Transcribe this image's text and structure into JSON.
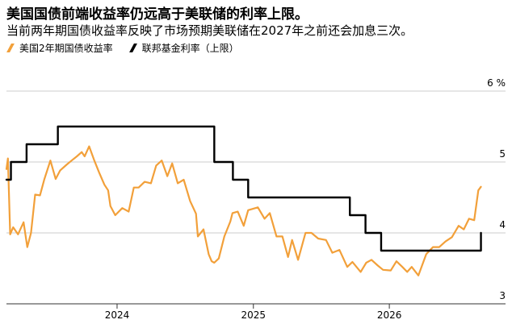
{
  "header": {
    "title": "美国国债前端收益率仍远高于美联储的利率上限。",
    "subtitle": "当前两年期国债收益率反映了市场预期美联储在2027年之前还会加息三次。"
  },
  "colors": {
    "yield": "#F2A03A",
    "fed": "#000000",
    "grid": "#cccccc",
    "axis": "#333333"
  },
  "chart_data": {
    "type": "line",
    "title": "美国国债前端收益率仍远高于美联储的利率上限。",
    "subtitle": "当前两年期国债收益率反映了市场预期美联储在2027年之前还会加息三次。",
    "xlabel": "",
    "ylabel": "",
    "ylim": [
      3,
      6.25
    ],
    "xlim": [
      "2023-03-10",
      "2026-10-01"
    ],
    "yticks": [
      {
        "value": 3,
        "label": "3"
      },
      {
        "value": 4,
        "label": "4"
      },
      {
        "value": 5,
        "label": "5"
      },
      {
        "value": 6,
        "label": "6 %"
      }
    ],
    "xticks": [
      {
        "value": "2024-01-01",
        "label": "2024"
      },
      {
        "value": "2025-01-01",
        "label": "2025"
      },
      {
        "value": "2026-01-01",
        "label": "2026"
      }
    ],
    "grid": true,
    "legend_position": "top-left",
    "series": [
      {
        "name": "美国2年期国债收益率",
        "style": "line",
        "color": "#F2A03A",
        "x": [
          "2023-03-10",
          "2023-03-14",
          "2023-03-20",
          "2023-03-28",
          "2023-04-10",
          "2023-04-25",
          "2023-05-05",
          "2023-05-15",
          "2023-05-26",
          "2023-06-08",
          "2023-06-20",
          "2023-07-06",
          "2023-07-20",
          "2023-08-01",
          "2023-08-18",
          "2023-09-01",
          "2023-09-15",
          "2023-09-28",
          "2023-10-06",
          "2023-10-18",
          "2023-11-01",
          "2023-11-14",
          "2023-11-28",
          "2023-12-08",
          "2023-12-14",
          "2023-12-27",
          "2024-01-15",
          "2024-02-01",
          "2024-02-15",
          "2024-02-28",
          "2024-03-15",
          "2024-04-01",
          "2024-04-15",
          "2024-04-30",
          "2024-05-15",
          "2024-05-28",
          "2024-06-12",
          "2024-06-28",
          "2024-07-15",
          "2024-07-31",
          "2024-08-05",
          "2024-08-20",
          "2024-09-03",
          "2024-09-11",
          "2024-09-18",
          "2024-09-30",
          "2024-10-15",
          "2024-10-31",
          "2024-11-06",
          "2024-11-20",
          "2024-12-06",
          "2024-12-18",
          "2025-01-13",
          "2025-01-31",
          "2025-02-14",
          "2025-03-04",
          "2025-03-20",
          "2025-04-04",
          "2025-04-15",
          "2025-05-01",
          "2025-05-21",
          "2025-06-06",
          "2025-06-24",
          "2025-07-15",
          "2025-08-01",
          "2025-08-20",
          "2025-09-10",
          "2025-09-24",
          "2025-10-16",
          "2025-10-31",
          "2025-11-14",
          "2025-12-01",
          "2025-12-15",
          "2026-01-05",
          "2026-01-20",
          "2026-02-05",
          "2026-02-18",
          "2026-03-02",
          "2026-03-20",
          "2026-04-10",
          "2026-04-28",
          "2026-05-15",
          "2026-06-01",
          "2026-06-18",
          "2026-07-06",
          "2026-07-20",
          "2026-08-03",
          "2026-08-17",
          "2026-08-28",
          "2026-09-04"
        ],
        "values": [
          4.9,
          5.05,
          3.98,
          4.08,
          3.98,
          4.15,
          3.8,
          4.0,
          4.54,
          4.53,
          4.76,
          5.02,
          4.76,
          4.88,
          4.96,
          5.02,
          5.08,
          5.14,
          5.08,
          5.22,
          5.02,
          4.85,
          4.68,
          4.6,
          4.38,
          4.25,
          4.35,
          4.3,
          4.64,
          4.64,
          4.72,
          4.7,
          4.95,
          5.02,
          4.8,
          4.98,
          4.7,
          4.75,
          4.45,
          4.27,
          3.95,
          4.05,
          3.7,
          3.6,
          3.58,
          3.64,
          3.95,
          4.16,
          4.28,
          4.3,
          4.1,
          4.32,
          4.36,
          4.2,
          4.28,
          3.95,
          3.95,
          3.66,
          3.9,
          3.62,
          4.0,
          4.0,
          3.92,
          3.9,
          3.72,
          3.76,
          3.52,
          3.59,
          3.45,
          3.58,
          3.62,
          3.54,
          3.48,
          3.47,
          3.6,
          3.52,
          3.45,
          3.52,
          3.4,
          3.7,
          3.8,
          3.8,
          3.88,
          3.94,
          4.1,
          4.05,
          4.2,
          4.18,
          4.6,
          4.65
        ]
      },
      {
        "name": "联邦基金利率（上限）",
        "style": "step",
        "color": "#000000",
        "x": [
          "2023-03-10",
          "2023-03-22",
          "2023-05-03",
          "2023-07-26",
          "2024-09-18",
          "2024-11-07",
          "2024-12-18",
          "2025-09-17",
          "2025-10-29",
          "2025-12-10",
          "2026-09-04"
        ],
        "values": [
          4.75,
          5.0,
          5.25,
          5.5,
          5.0,
          4.75,
          4.5,
          4.25,
          4.0,
          3.75,
          4.0
        ]
      }
    ]
  }
}
